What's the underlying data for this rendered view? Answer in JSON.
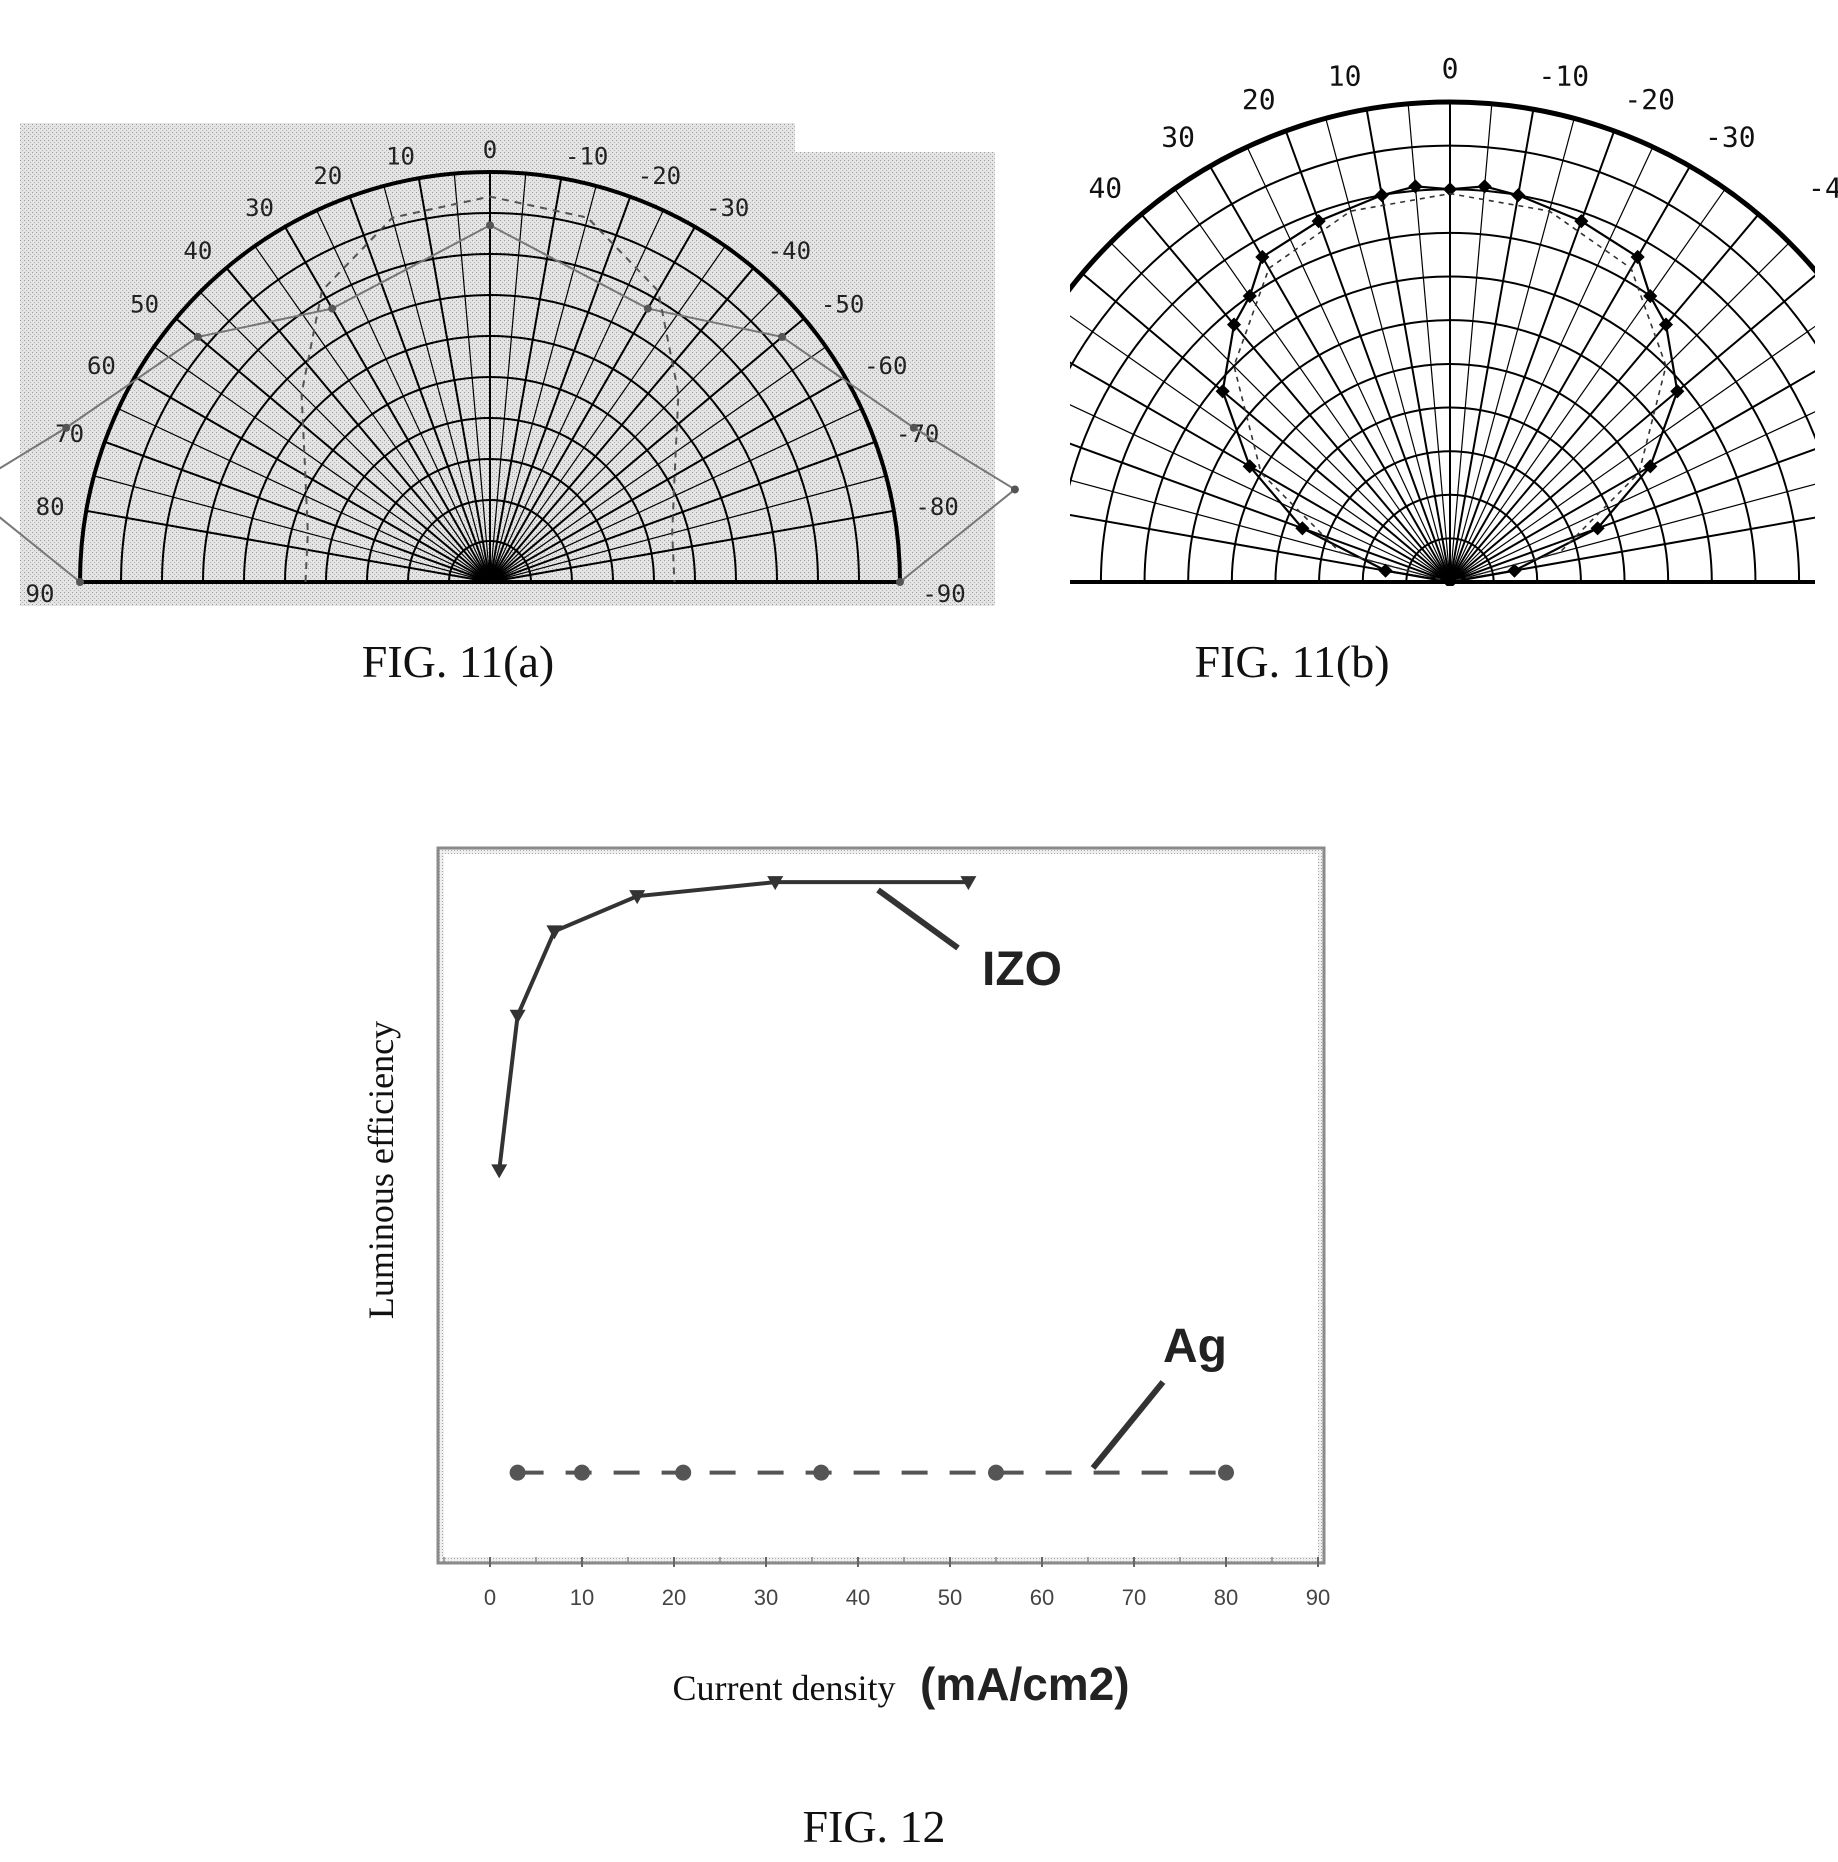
{
  "fig11a": {
    "caption": "FIG. 11(a)",
    "angle_labels": [
      "90",
      "80",
      "70",
      "60",
      "50",
      "40",
      "30",
      "20",
      "10",
      "0",
      "-10",
      "-20",
      "-30",
      "-40",
      "-50",
      "-60",
      "-70",
      "-80",
      "-90"
    ]
  },
  "fig11b": {
    "caption": "FIG. 11(b)",
    "angle_labels": [
      "40",
      "30",
      "20",
      "10",
      "0",
      "-10",
      "-20",
      "-30",
      "-4"
    ]
  },
  "fig12": {
    "caption": "FIG. 12",
    "ylabel": "Luminous efficiency",
    "xlabel": "Current density",
    "xlabel_unit": "(mA/cm2)",
    "series_labels": [
      "IZO",
      "Ag"
    ]
  },
  "chart_data": [
    {
      "type": "scatter",
      "subtype": "polar",
      "angle_range": [
        -90,
        90
      ],
      "radial_gridlines": 10,
      "angular_step": 10,
      "grid": true,
      "series": [
        {
          "style": "solid",
          "angles": [
            90,
            80,
            70,
            50,
            30,
            0,
            -30,
            -50,
            -70,
            -80,
            -90
          ],
          "values": [
            1.0,
            1.3,
            1.1,
            0.93,
            0.77,
            0.87,
            0.77,
            0.93,
            1.1,
            1.3,
            1.0
          ]
        },
        {
          "style": "dashed",
          "angles": [
            90,
            75,
            60,
            45,
            30,
            15,
            0,
            -15,
            -30,
            -45,
            -60,
            -75,
            -90
          ],
          "values": [
            0.45,
            0.46,
            0.52,
            0.65,
            0.82,
            0.92,
            0.94,
            0.92,
            0.82,
            0.65,
            0.52,
            0.46,
            0.45
          ]
        }
      ]
    },
    {
      "type": "scatter",
      "subtype": "polar",
      "angle_range": [
        -90,
        90
      ],
      "angular_step": 10,
      "grid": true,
      "series": [
        {
          "style": "solid-diamond",
          "angles": [
            90,
            80,
            70,
            60,
            50,
            40,
            35,
            30,
            20,
            10,
            5,
            0,
            -5,
            -10,
            -20,
            -30,
            -35,
            -40,
            -50,
            -60,
            -70,
            -80,
            -90
          ],
          "values": [
            0.0,
            0.15,
            0.36,
            0.53,
            0.68,
            0.77,
            0.8,
            0.86,
            0.88,
            0.9,
            0.91,
            0.9,
            0.91,
            0.9,
            0.88,
            0.86,
            0.8,
            0.77,
            0.68,
            0.53,
            0.36,
            0.15,
            0.0
          ]
        },
        {
          "style": "dashed",
          "angles": [
            90,
            75,
            60,
            45,
            30,
            15,
            0,
            -15,
            -30,
            -45,
            -60,
            -75,
            -90
          ],
          "values": [
            0.0,
            0.26,
            0.5,
            0.7,
            0.83,
            0.88,
            0.89,
            0.88,
            0.83,
            0.7,
            0.5,
            0.26,
            0.0
          ]
        }
      ]
    },
    {
      "type": "line",
      "xlabel": "Current density (mA/cm2)",
      "ylabel": "Luminous efficiency",
      "xlim": [
        -5,
        90
      ],
      "ylim": [
        0,
        1
      ],
      "xticks": [
        0,
        10,
        20,
        30,
        40,
        50,
        60,
        70,
        80,
        90
      ],
      "series": [
        {
          "name": "IZO",
          "style": "solid",
          "marker": "triangle-down",
          "x": [
            1,
            3,
            7,
            16,
            31,
            52
          ],
          "y": [
            0.55,
            0.77,
            0.89,
            0.94,
            0.96,
            0.96
          ]
        },
        {
          "name": "Ag",
          "style": "dashed",
          "marker": "circle",
          "x": [
            3,
            10,
            21,
            36,
            55,
            80
          ],
          "y": [
            0.12,
            0.12,
            0.12,
            0.12,
            0.12,
            0.12
          ]
        }
      ]
    }
  ]
}
